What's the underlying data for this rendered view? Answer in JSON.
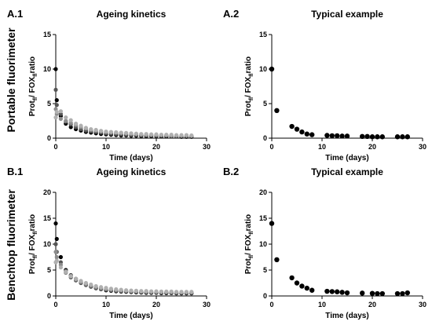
{
  "row_labels": [
    "Portable fluorimeter",
    "Benchtop fluorimeter"
  ],
  "chart_data": [
    {
      "panel": "A.1",
      "title": "Ageing kinetics",
      "type": "scatter",
      "xlabel": "Time (days)",
      "ylabel_main": "Prot",
      "ylabel_sub1": "fl",
      "ylabel_mid": "/ FOX",
      "ylabel_sub2": "fl",
      "ylabel_end": "ratio",
      "xlim": [
        0,
        30
      ],
      "ylim": [
        0,
        15
      ],
      "xticks": [
        0,
        10,
        20,
        30
      ],
      "yticks": [
        0,
        5,
        10,
        15
      ],
      "series": [
        {
          "color": "#000000",
          "x": [
            0,
            0.2,
            1,
            2,
            3,
            4,
            5,
            6,
            7,
            8,
            9,
            10,
            11,
            12,
            13,
            14,
            15,
            16,
            17,
            18,
            19,
            20,
            21,
            22,
            23,
            24,
            25,
            26,
            27
          ],
          "y": [
            10,
            5.5,
            3.2,
            2.1,
            1.6,
            1.3,
            1.1,
            0.9,
            0.8,
            0.7,
            0.6,
            0.55,
            0.5,
            0.45,
            0.4,
            0.4,
            0.35,
            0.35,
            0.3,
            0.3,
            0.3,
            0.3,
            0.25,
            0.25,
            0.25,
            0.25,
            0.2,
            0.2,
            0.2
          ]
        },
        {
          "color": "#555555",
          "x": [
            0,
            0.2,
            1,
            2,
            3,
            4,
            5,
            6,
            7,
            8,
            9,
            10,
            11,
            12,
            13,
            14,
            15,
            16,
            17,
            18,
            19,
            20,
            21,
            22,
            23,
            24,
            25,
            26,
            27
          ],
          "y": [
            7,
            4.8,
            3.5,
            2.4,
            2,
            1.6,
            1.3,
            1.1,
            1,
            0.9,
            0.8,
            0.7,
            0.65,
            0.6,
            0.55,
            0.5,
            0.45,
            0.45,
            0.4,
            0.4,
            0.4,
            0.35,
            0.35,
            0.35,
            0.3,
            0.3,
            0.3,
            0.3,
            0.3
          ]
        },
        {
          "color": "#8c8c8c",
          "x": [
            0,
            0.2,
            1,
            2,
            3,
            4,
            5,
            6,
            7,
            8,
            9,
            10,
            11,
            12,
            13,
            14,
            15,
            16,
            17,
            18,
            19,
            20,
            21,
            22,
            23,
            24,
            25,
            26,
            27
          ],
          "y": [
            4.2,
            3.5,
            2.8,
            2.5,
            2.2,
            1.9,
            1.6,
            1.4,
            1.2,
            1.1,
            1,
            0.9,
            0.85,
            0.8,
            0.75,
            0.7,
            0.65,
            0.6,
            0.55,
            0.5,
            0.5,
            0.5,
            0.45,
            0.45,
            0.4,
            0.4,
            0.4,
            0.4,
            0.35
          ]
        },
        {
          "color": "#b0b0b0",
          "x": [
            0,
            0.2,
            1,
            2,
            3,
            4,
            5,
            6,
            7,
            8,
            9,
            10,
            11,
            12,
            13,
            14,
            15,
            16,
            17,
            18,
            19,
            20,
            21,
            22,
            23,
            24,
            25,
            26,
            27
          ],
          "y": [
            3,
            3.8,
            3.9,
            3,
            2.6,
            2.1,
            1.8,
            1.5,
            1.3,
            1.2,
            1.05,
            0.95,
            0.9,
            0.85,
            0.8,
            0.75,
            0.7,
            0.65,
            0.6,
            0.6,
            0.55,
            0.55,
            0.5,
            0.5,
            0.5,
            0.45,
            0.45,
            0.45,
            0.4
          ]
        }
      ]
    },
    {
      "panel": "A.2",
      "title": "Typical example",
      "type": "scatter",
      "xlabel": "Time (days)",
      "ylabel_main": "Prot",
      "ylabel_sub1": "fl",
      "ylabel_mid": "/ FOX",
      "ylabel_sub2": "fl",
      "ylabel_end": "ratio",
      "xlim": [
        0,
        30
      ],
      "ylim": [
        0,
        15
      ],
      "xticks": [
        0,
        10,
        20,
        30
      ],
      "yticks": [
        0,
        5,
        10,
        15
      ],
      "series": [
        {
          "color": "#000000",
          "x": [
            0,
            1,
            4,
            5,
            6,
            7,
            8,
            11,
            12,
            13,
            14,
            15,
            18,
            19,
            20,
            21,
            22,
            25,
            26,
            27
          ],
          "y": [
            10,
            4,
            1.7,
            1.3,
            0.9,
            0.6,
            0.5,
            0.4,
            0.35,
            0.35,
            0.3,
            0.3,
            0.25,
            0.25,
            0.2,
            0.2,
            0.2,
            0.2,
            0.2,
            0.2
          ]
        }
      ]
    },
    {
      "panel": "B.1",
      "title": "Ageing kinetics",
      "type": "scatter",
      "xlabel": "Time (days)",
      "ylabel_main": "Prot",
      "ylabel_sub1": "fl",
      "ylabel_mid": "/ FOX",
      "ylabel_sub2": "fl",
      "ylabel_end": "ratio",
      "xlim": [
        0,
        30
      ],
      "ylim": [
        0,
        20
      ],
      "xticks": [
        0,
        10,
        20,
        30
      ],
      "yticks": [
        0,
        5,
        10,
        15,
        20
      ],
      "series": [
        {
          "color": "#000000",
          "x": [
            0,
            0.2,
            1,
            2,
            3,
            4,
            5,
            6,
            7,
            8,
            9,
            10,
            11,
            12,
            13,
            14,
            15,
            16,
            17,
            18,
            19,
            20,
            21,
            22,
            23,
            24,
            25,
            26,
            27
          ],
          "y": [
            14,
            11,
            7.5,
            5,
            4,
            3.3,
            2.8,
            2.2,
            1.8,
            1.5,
            1.3,
            1.1,
            1,
            0.9,
            0.85,
            0.8,
            0.75,
            0.7,
            0.65,
            0.6,
            0.6,
            0.6,
            0.55,
            0.55,
            0.55,
            0.5,
            0.5,
            0.5,
            0.5
          ]
        },
        {
          "color": "#555555",
          "x": [
            0,
            0.2,
            1,
            2,
            3,
            4,
            5,
            6,
            7,
            8,
            9,
            10,
            11,
            12,
            13,
            14,
            15,
            16,
            17,
            18,
            19,
            20,
            21,
            22,
            23,
            24,
            25,
            26,
            27
          ],
          "y": [
            10,
            8.5,
            6.5,
            4.5,
            3.6,
            3,
            2.5,
            2.1,
            1.8,
            1.5,
            1.3,
            1.2,
            1.1,
            1,
            0.95,
            0.9,
            0.85,
            0.8,
            0.75,
            0.7,
            0.7,
            0.65,
            0.65,
            0.65,
            0.6,
            0.6,
            0.6,
            0.6,
            0.6
          ]
        },
        {
          "color": "#8c8c8c",
          "x": [
            0,
            0.2,
            1,
            2,
            3,
            4,
            5,
            6,
            7,
            8,
            9,
            10,
            11,
            12,
            13,
            14,
            15,
            16,
            17,
            18,
            19,
            20,
            21,
            22,
            23,
            24,
            25,
            26,
            27
          ],
          "y": [
            8.5,
            7.5,
            6,
            4.8,
            3.9,
            3.2,
            2.7,
            2.3,
            2,
            1.7,
            1.5,
            1.35,
            1.25,
            1.15,
            1.05,
            1,
            0.95,
            0.9,
            0.85,
            0.85,
            0.8,
            0.8,
            0.75,
            0.75,
            0.75,
            0.7,
            0.7,
            0.7,
            0.7
          ]
        },
        {
          "color": "#b0b0b0",
          "x": [
            0,
            0.2,
            1,
            2,
            3,
            4,
            5,
            6,
            7,
            8,
            9,
            10,
            11,
            12,
            13,
            14,
            15,
            16,
            17,
            18,
            19,
            20,
            21,
            22,
            23,
            24,
            25,
            26,
            27
          ],
          "y": [
            6.5,
            6.8,
            5.5,
            4.6,
            3.8,
            3.3,
            2.9,
            2.5,
            2.2,
            1.9,
            1.7,
            1.55,
            1.4,
            1.3,
            1.2,
            1.1,
            1.05,
            1,
            0.95,
            0.95,
            0.9,
            0.9,
            0.85,
            0.85,
            0.85,
            0.8,
            0.8,
            0.8,
            0.8
          ]
        }
      ]
    },
    {
      "panel": "B.2",
      "title": "Typical example",
      "type": "scatter",
      "xlabel": "Time (days)",
      "ylabel_main": "Prot",
      "ylabel_sub1": "fl",
      "ylabel_mid": "/ FOX",
      "ylabel_sub2": "fl",
      "ylabel_end": "ratio",
      "xlim": [
        0,
        30
      ],
      "ylim": [
        0,
        20
      ],
      "xticks": [
        0,
        10,
        20,
        30
      ],
      "yticks": [
        0,
        5,
        10,
        15,
        20
      ],
      "series": [
        {
          "color": "#000000",
          "x": [
            0,
            1,
            4,
            5,
            6,
            7,
            8,
            11,
            12,
            13,
            14,
            15,
            18,
            20,
            21,
            22,
            25,
            26,
            27
          ],
          "y": [
            14,
            7,
            3.5,
            2.5,
            1.9,
            1.5,
            1.1,
            0.9,
            0.85,
            0.8,
            0.7,
            0.6,
            0.55,
            0.5,
            0.45,
            0.45,
            0.45,
            0.45,
            0.6
          ]
        }
      ]
    }
  ]
}
